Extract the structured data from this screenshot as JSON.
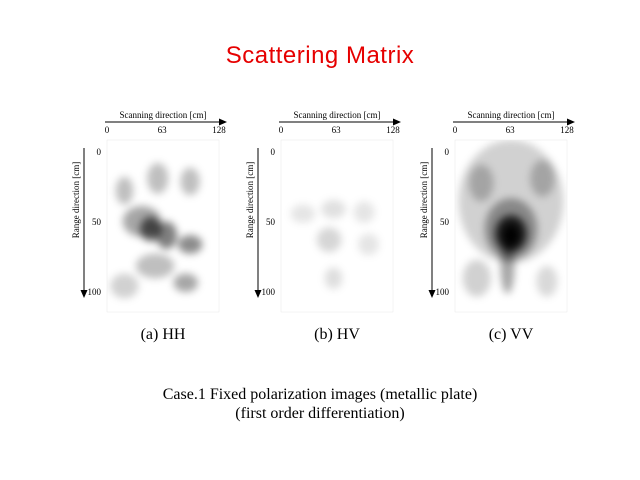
{
  "title": "Scattering Matrix",
  "axes": {
    "x_label": "Scanning direction [cm]",
    "y_label": "Range direction [cm]",
    "x_ticks": [
      "0",
      "63",
      "128"
    ],
    "y_ticks": [
      "0",
      "50",
      "100"
    ]
  },
  "panels": [
    {
      "caption": "(a)  HH",
      "blobs": [
        {
          "x": 20,
          "y": 33,
          "rx": 10,
          "ry": 9,
          "v": 0.25
        },
        {
          "x": 58,
          "y": 25,
          "rx": 12,
          "ry": 10,
          "v": 0.25
        },
        {
          "x": 95,
          "y": 27,
          "rx": 11,
          "ry": 9,
          "v": 0.25
        },
        {
          "x": 40,
          "y": 53,
          "rx": 22,
          "ry": 10,
          "v": 0.35
        },
        {
          "x": 50,
          "y": 58,
          "rx": 12,
          "ry": 8,
          "v": 0.6
        },
        {
          "x": 68,
          "y": 62,
          "rx": 12,
          "ry": 9,
          "v": 0.5
        },
        {
          "x": 95,
          "y": 68,
          "rx": 14,
          "ry": 6,
          "v": 0.45
        },
        {
          "x": 55,
          "y": 82,
          "rx": 22,
          "ry": 8,
          "v": 0.25
        },
        {
          "x": 90,
          "y": 93,
          "rx": 14,
          "ry": 6,
          "v": 0.35
        },
        {
          "x": 20,
          "y": 95,
          "rx": 16,
          "ry": 8,
          "v": 0.18
        }
      ]
    },
    {
      "caption": "(b)  HV",
      "blobs": [
        {
          "x": 25,
          "y": 48,
          "rx": 14,
          "ry": 6,
          "v": 0.1
        },
        {
          "x": 60,
          "y": 45,
          "rx": 14,
          "ry": 6,
          "v": 0.12
        },
        {
          "x": 95,
          "y": 47,
          "rx": 12,
          "ry": 7,
          "v": 0.1
        },
        {
          "x": 55,
          "y": 65,
          "rx": 14,
          "ry": 8,
          "v": 0.16
        },
        {
          "x": 100,
          "y": 68,
          "rx": 12,
          "ry": 7,
          "v": 0.1
        },
        {
          "x": 60,
          "y": 90,
          "rx": 10,
          "ry": 7,
          "v": 0.13
        }
      ]
    },
    {
      "caption": "(c)  VV",
      "blobs": [
        {
          "x": 64,
          "y": 40,
          "rx": 60,
          "ry": 40,
          "v": 0.18
        },
        {
          "x": 30,
          "y": 28,
          "rx": 14,
          "ry": 12,
          "v": 0.22
        },
        {
          "x": 100,
          "y": 25,
          "rx": 14,
          "ry": 12,
          "v": 0.22
        },
        {
          "x": 64,
          "y": 58,
          "rx": 30,
          "ry": 20,
          "v": 0.35
        },
        {
          "x": 64,
          "y": 61,
          "rx": 18,
          "ry": 12,
          "v": 0.8
        },
        {
          "x": 64,
          "y": 62,
          "rx": 9,
          "ry": 7,
          "v": 1.0
        },
        {
          "x": 60,
          "y": 82,
          "rx": 8,
          "ry": 18,
          "v": 0.35
        },
        {
          "x": 25,
          "y": 90,
          "rx": 16,
          "ry": 12,
          "v": 0.18
        },
        {
          "x": 105,
          "y": 92,
          "rx": 12,
          "ry": 10,
          "v": 0.15
        }
      ]
    }
  ],
  "footer": {
    "line1": "Case.1  Fixed polarization images (metallic plate)",
    "line2": "(first order differentiation)"
  },
  "colors": {
    "title": "#e60000"
  }
}
